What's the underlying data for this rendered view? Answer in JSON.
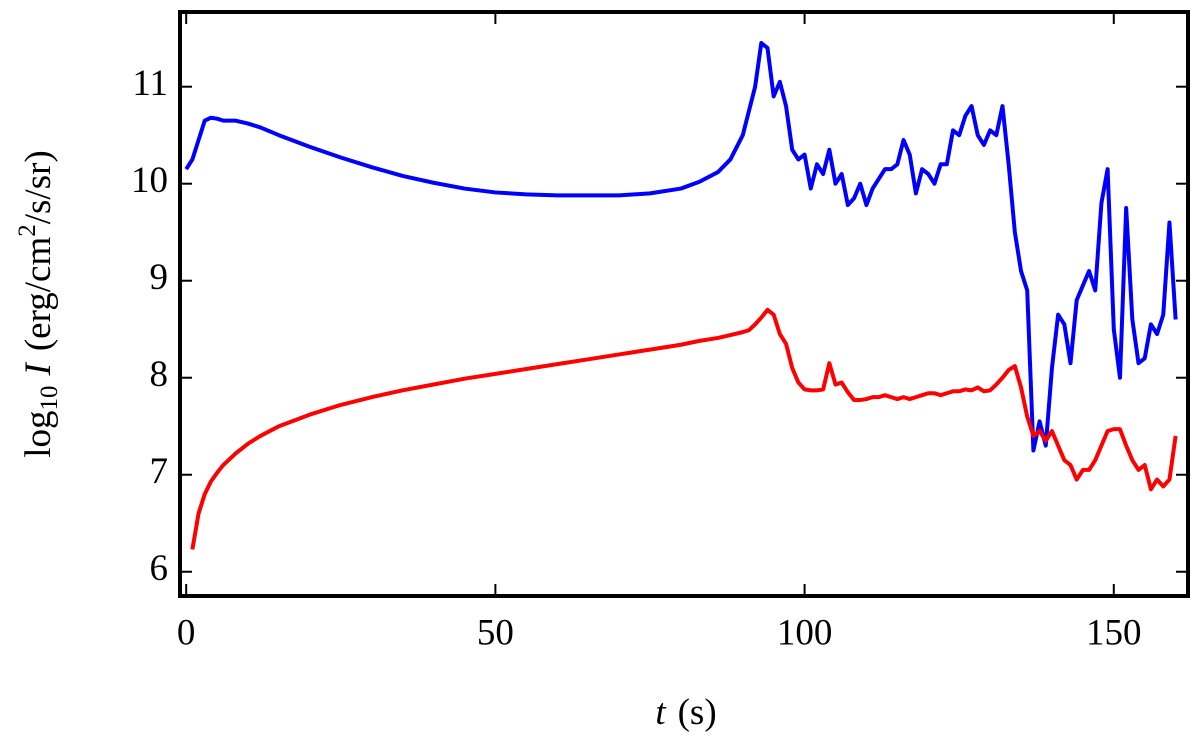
{
  "chart_data": {
    "type": "line",
    "xlabel_parts": [
      "t",
      "(s)"
    ],
    "ylabel_parts": [
      "log",
      "10",
      "I",
      "(erg/cm",
      "2",
      "/s/sr)"
    ],
    "x": [
      0,
      1,
      2,
      3,
      4,
      5,
      6,
      8,
      10,
      12,
      15,
      20,
      25,
      30,
      35,
      40,
      45,
      50,
      55,
      60,
      65,
      70,
      75,
      80,
      83,
      86,
      88,
      90,
      91,
      92,
      93,
      94,
      95,
      96,
      97,
      98,
      99,
      100,
      101,
      102,
      103,
      104,
      105,
      106,
      107,
      108,
      109,
      110,
      111,
      112,
      113,
      114,
      115,
      116,
      117,
      118,
      119,
      120,
      121,
      122,
      123,
      124,
      125,
      126,
      127,
      128,
      129,
      130,
      131,
      132,
      133,
      134,
      135,
      136,
      137,
      138,
      139,
      140,
      141,
      142,
      143,
      144,
      145,
      146,
      147,
      148,
      149,
      150,
      151,
      152,
      153,
      154,
      155,
      156,
      157,
      158,
      159,
      160
    ],
    "series": [
      {
        "color": "#0000ff",
        "values": [
          10.15,
          10.25,
          10.45,
          10.65,
          10.68,
          10.67,
          10.65,
          10.65,
          10.62,
          10.58,
          10.5,
          10.38,
          10.27,
          10.17,
          10.08,
          10.01,
          9.95,
          9.91,
          9.89,
          9.88,
          9.88,
          9.88,
          9.9,
          9.95,
          10.02,
          10.12,
          10.25,
          10.5,
          10.75,
          11.0,
          11.45,
          11.4,
          10.9,
          11.05,
          10.8,
          10.35,
          10.25,
          10.3,
          9.95,
          10.2,
          10.1,
          10.35,
          10.0,
          10.1,
          9.78,
          9.85,
          10.0,
          9.78,
          9.95,
          10.05,
          10.15,
          10.15,
          10.2,
          10.45,
          10.3,
          9.9,
          10.15,
          10.1,
          10.0,
          10.2,
          10.2,
          10.55,
          10.5,
          10.7,
          10.8,
          10.5,
          10.4,
          10.55,
          10.5,
          10.8,
          10.2,
          9.5,
          9.1,
          8.9,
          7.25,
          7.55,
          7.3,
          8.1,
          8.65,
          8.55,
          8.15,
          8.8,
          8.95,
          9.1,
          8.9,
          9.8,
          10.15,
          8.5,
          8.0,
          9.75,
          8.6,
          8.15,
          8.2,
          8.55,
          8.45,
          8.65,
          9.6,
          8.6
        ]
      },
      {
        "color": "#ff0000",
        "values": [
          null,
          6.23,
          6.6,
          6.8,
          6.93,
          7.02,
          7.1,
          7.22,
          7.32,
          7.4,
          7.5,
          7.62,
          7.72,
          7.8,
          7.87,
          7.93,
          7.99,
          8.04,
          8.09,
          8.14,
          8.19,
          8.24,
          8.29,
          8.34,
          8.38,
          8.41,
          8.44,
          8.47,
          8.49,
          8.55,
          8.62,
          8.7,
          8.65,
          8.45,
          8.35,
          8.1,
          7.95,
          7.88,
          7.87,
          7.87,
          7.88,
          8.15,
          7.93,
          7.95,
          7.85,
          7.77,
          7.77,
          7.78,
          7.8,
          7.8,
          7.82,
          7.8,
          7.78,
          7.8,
          7.78,
          7.8,
          7.82,
          7.84,
          7.84,
          7.82,
          7.84,
          7.86,
          7.86,
          7.88,
          7.87,
          7.9,
          7.86,
          7.87,
          7.93,
          8.0,
          8.08,
          8.12,
          7.9,
          7.6,
          7.4,
          7.45,
          7.35,
          7.45,
          7.3,
          7.15,
          7.1,
          6.95,
          7.05,
          7.05,
          7.15,
          7.3,
          7.45,
          7.47,
          7.47,
          7.3,
          7.15,
          7.05,
          7.1,
          6.85,
          6.95,
          6.88,
          6.95,
          7.4
        ]
      }
    ],
    "xlim": [
      -1,
      162
    ],
    "xticks": [
      0,
      50,
      100,
      150
    ],
    "ylim": [
      5.75,
      11.77
    ],
    "yticks": [
      6,
      7,
      8,
      9,
      10,
      11
    ],
    "grid": false
  }
}
